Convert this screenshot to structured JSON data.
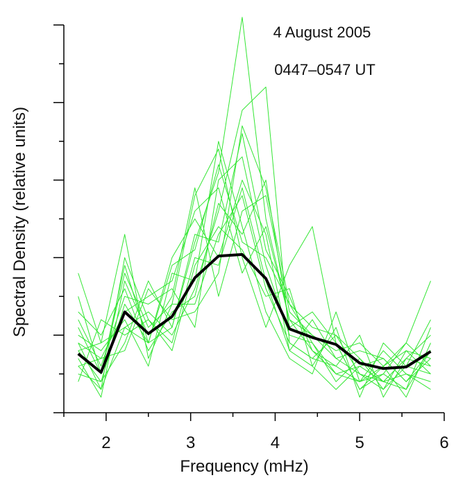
{
  "chart_data": {
    "type": "line",
    "title": "4 August 2005",
    "subtitle": "0447–0547 UT",
    "xlabel": "Frequency (mHz)",
    "ylabel": "Spectral Density (relative units)",
    "xlim": [
      1.5,
      6.0
    ],
    "ylim": [
      0,
      5
    ],
    "x_ticks": [
      2,
      3,
      4,
      5,
      6
    ],
    "x_tick_labels": [
      "2",
      "3",
      "4",
      "5",
      "6"
    ],
    "x": [
      1.67,
      1.94,
      2.22,
      2.5,
      2.78,
      3.05,
      3.33,
      3.61,
      3.89,
      4.17,
      4.44,
      4.72,
      5.0,
      5.28,
      5.55,
      5.84
    ],
    "grid": false,
    "colors": {
      "mean": "#000000",
      "individual": "#33e633"
    },
    "series": [
      {
        "role": "mean",
        "values": [
          0.76,
          0.52,
          1.3,
          1.02,
          1.24,
          1.74,
          2.02,
          2.04,
          1.73,
          1.08,
          0.97,
          0.88,
          0.64,
          0.57,
          0.59,
          0.79
        ]
      },
      {
        "role": "individual",
        "values": [
          0.8,
          0.4,
          1.4,
          0.9,
          1.1,
          2.2,
          3.1,
          5.1,
          2.5,
          1.2,
          0.8,
          0.5,
          0.6,
          0.4,
          0.7,
          0.6
        ]
      },
      {
        "role": "individual",
        "values": [
          0.6,
          0.3,
          1.1,
          1.3,
          1.0,
          1.6,
          2.6,
          3.9,
          4.2,
          0.9,
          0.7,
          0.6,
          0.4,
          0.5,
          0.3,
          0.8
        ]
      },
      {
        "role": "individual",
        "values": [
          1.8,
          0.9,
          2.3,
          0.7,
          1.4,
          2.8,
          3.4,
          2.0,
          1.1,
          1.9,
          2.4,
          0.9,
          0.3,
          0.6,
          0.9,
          1.7
        ]
      },
      {
        "role": "individual",
        "values": [
          0.9,
          0.7,
          0.8,
          1.6,
          1.2,
          1.3,
          1.8,
          3.7,
          2.9,
          1.4,
          1.1,
          1.0,
          0.5,
          0.4,
          0.5,
          0.4
        ]
      },
      {
        "role": "individual",
        "values": [
          1.5,
          0.5,
          1.9,
          0.9,
          2.0,
          2.5,
          2.0,
          3.0,
          2.3,
          0.8,
          1.2,
          0.7,
          0.8,
          0.7,
          0.4,
          0.7
        ]
      },
      {
        "role": "individual",
        "values": [
          0.4,
          1.2,
          1.0,
          1.2,
          0.8,
          1.9,
          2.4,
          2.1,
          1.5,
          1.6,
          0.6,
          1.1,
          0.2,
          0.9,
          0.6,
          1.2
        ]
      },
      {
        "role": "individual",
        "values": [
          1.2,
          0.6,
          1.5,
          1.4,
          1.6,
          1.1,
          3.0,
          3.3,
          1.9,
          1.0,
          0.9,
          0.4,
          0.7,
          0.3,
          0.8,
          0.5
        ]
      },
      {
        "role": "individual",
        "values": [
          0.7,
          0.2,
          1.7,
          1.0,
          1.5,
          2.9,
          1.5,
          2.6,
          2.8,
          1.3,
          1.0,
          0.8,
          0.9,
          0.6,
          0.2,
          0.9
        ]
      },
      {
        "role": "individual",
        "values": [
          1.0,
          0.8,
          1.2,
          0.6,
          1.8,
          1.7,
          3.5,
          2.4,
          1.3,
          0.7,
          0.5,
          1.3,
          0.4,
          0.8,
          0.5,
          0.3
        ]
      },
      {
        "role": "individual",
        "values": [
          0.5,
          0.4,
          0.9,
          1.7,
          1.1,
          2.3,
          2.2,
          3.6,
          2.1,
          1.5,
          0.8,
          0.6,
          1.0,
          0.2,
          0.7,
          1.0
        ]
      },
      {
        "role": "individual",
        "values": [
          1.3,
          1.0,
          1.6,
          0.8,
          1.3,
          1.5,
          2.7,
          2.3,
          3.0,
          1.1,
          1.3,
          0.9,
          0.3,
          0.5,
          0.9,
          0.6
        ]
      },
      {
        "role": "individual",
        "values": [
          0.9,
          0.3,
          2.0,
          1.2,
          0.9,
          2.0,
          1.9,
          2.9,
          1.7,
          0.8,
          0.6,
          0.3,
          0.6,
          0.7,
          0.4,
          0.8
        ]
      },
      {
        "role": "individual",
        "values": [
          0.6,
          0.7,
          1.3,
          1.5,
          1.7,
          2.6,
          2.9,
          1.8,
          2.4,
          1.2,
          1.0,
          0.7,
          0.5,
          0.3,
          0.6,
          0.5
        ]
      },
      {
        "role": "individual",
        "values": [
          1.1,
          0.5,
          1.8,
          1.1,
          1.4,
          1.4,
          2.3,
          2.8,
          1.6,
          0.9,
          0.7,
          1.0,
          0.7,
          0.4,
          0.3,
          1.1
        ]
      },
      {
        "role": "individual",
        "values": [
          0.8,
          0.9,
          1.1,
          0.9,
          1.9,
          2.1,
          3.2,
          2.2,
          2.0,
          1.4,
          0.9,
          0.5,
          0.4,
          0.6,
          0.8,
          0.7
        ]
      }
    ]
  }
}
